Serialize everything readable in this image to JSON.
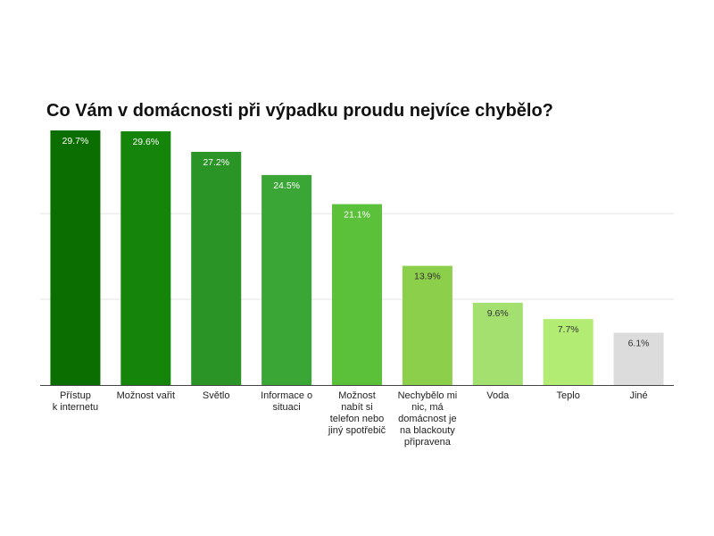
{
  "chart_data": {
    "type": "bar",
    "title": "Co Vám v domácnosti při výpadku proudu nejvíce chybělo?",
    "xlabel": "",
    "ylabel": "",
    "ylim": [
      0,
      30
    ],
    "grid": true,
    "legend": "none",
    "categories": [
      [
        "Přístup",
        "k internetu"
      ],
      [
        "Možnost vařit"
      ],
      [
        "Světlo"
      ],
      [
        "Informace o",
        "situaci"
      ],
      [
        "Možnost",
        "nabít si",
        "telefon nebo",
        "jiný spotřebič"
      ],
      [
        "Nechybělo mi",
        "nic, má",
        "domácnost je",
        "na blackouty",
        "připravena"
      ],
      [
        "Voda"
      ],
      [
        "Teplo"
      ],
      [
        "Jiné"
      ]
    ],
    "values": [
      29.7,
      29.6,
      27.2,
      24.5,
      21.1,
      13.9,
      9.6,
      7.7,
      6.1
    ],
    "data_labels": [
      "29.7%",
      "29.6%",
      "27.2%",
      "24.5%",
      "21.1%",
      "13.9%",
      "9.6%",
      "7.7%",
      "6.1%"
    ],
    "colors": [
      "#0a6e00",
      "#14840a",
      "#2a9526",
      "#3aa636",
      "#5cc13a",
      "#8ccf4a",
      "#a4e070",
      "#b2ec72",
      "#dcdcdc"
    ],
    "label_colors": [
      "#ffffff",
      "#ffffff",
      "#ffffff",
      "#ffffff",
      "#ffffff",
      "#333333",
      "#333333",
      "#333333",
      "#333333"
    ]
  }
}
